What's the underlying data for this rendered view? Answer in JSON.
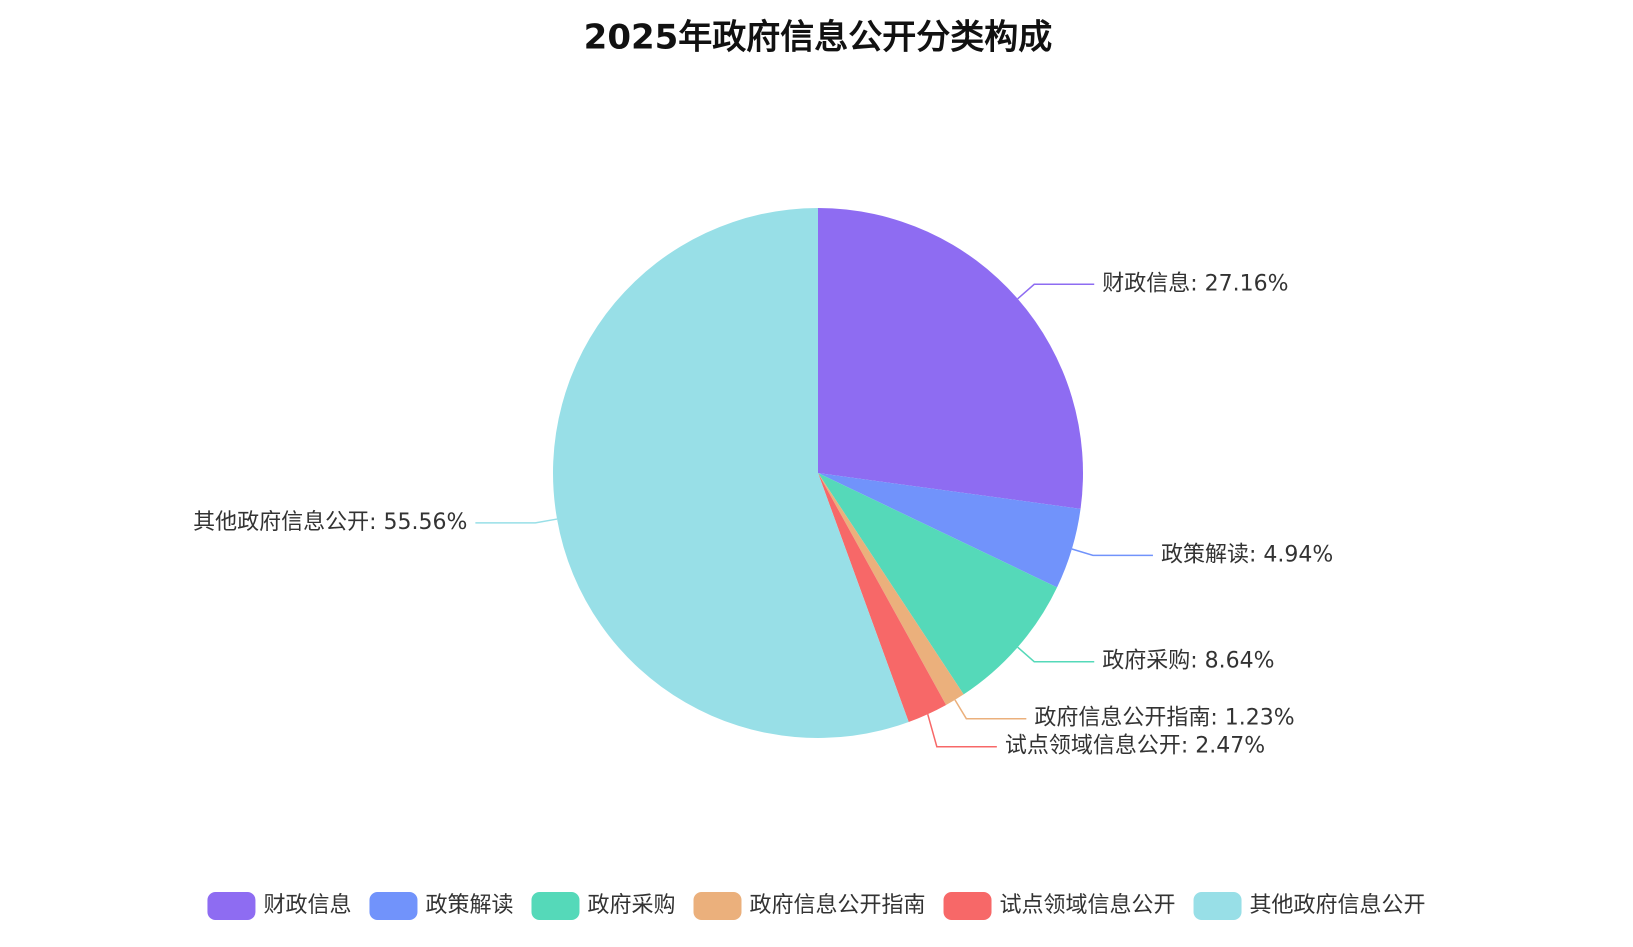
{
  "chart_data": {
    "type": "pie",
    "title": "2025年政府信息公开分类构成",
    "categories": [
      "财政信息",
      "政策解读",
      "政府采购",
      "政府信息公开指南",
      "试点领域信息公开",
      "其他政府信息公开"
    ],
    "values": [
      27.16,
      4.94,
      8.64,
      1.23,
      2.47,
      55.56
    ],
    "value_labels": [
      "财政信息: 27.16%",
      "政策解读: 4.94%",
      "政府采购: 8.64%",
      "政府信息公开指南: 1.23%",
      "试点领域信息公开: 2.47%",
      "其他政府信息公开: 55.56%"
    ],
    "colors": [
      "#8e6cf2",
      "#7193fb",
      "#55d9b9",
      "#ebb07c",
      "#f76868",
      "#98dfe7"
    ],
    "legend": "bottom"
  }
}
